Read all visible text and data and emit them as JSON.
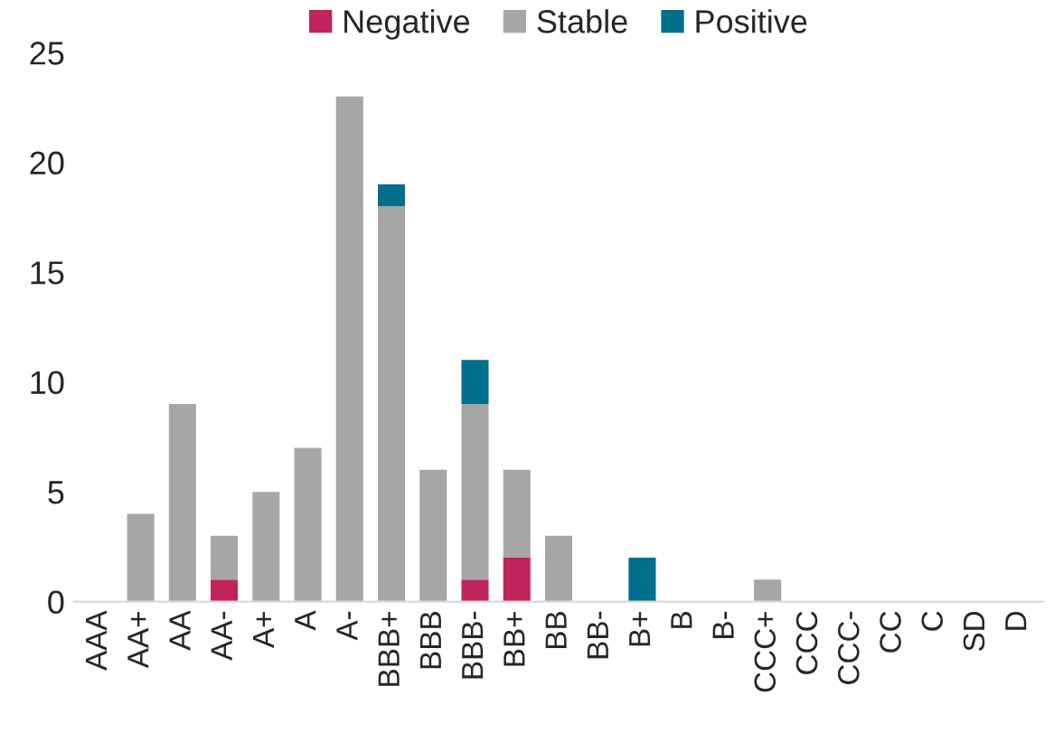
{
  "chart_data": {
    "type": "bar",
    "stacked": true,
    "categories": [
      "AAA",
      "AA+",
      "AA",
      "AA-",
      "A+",
      "A",
      "A-",
      "BBB+",
      "BBB",
      "BBB-",
      "BB+",
      "BB",
      "BB-",
      "B+",
      "B",
      "B-",
      "CCC+",
      "CCC",
      "CCC-",
      "CC",
      "C",
      "SD",
      "D"
    ],
    "series": [
      {
        "name": "Negative",
        "color": "#c0245c",
        "values": [
          0,
          0,
          0,
          1,
          0,
          0,
          0,
          0,
          0,
          1,
          2,
          0,
          0,
          0,
          0,
          0,
          0,
          0,
          0,
          0,
          0,
          0,
          0
        ]
      },
      {
        "name": "Stable",
        "color": "#a6a6a6",
        "values": [
          0,
          4,
          9,
          2,
          5,
          7,
          23,
          18,
          6,
          8,
          4,
          3,
          0,
          0,
          0,
          0,
          1,
          0,
          0,
          0,
          0,
          0,
          0
        ]
      },
      {
        "name": "Positive",
        "color": "#006f8a",
        "values": [
          0,
          0,
          0,
          0,
          0,
          0,
          0,
          1,
          0,
          2,
          0,
          0,
          0,
          2,
          0,
          0,
          0,
          0,
          0,
          0,
          0,
          0,
          0
        ]
      }
    ],
    "ylim": [
      0,
      25
    ],
    "yticks": [
      0,
      5,
      10,
      15,
      20,
      25
    ],
    "grid": false,
    "legend": "top"
  }
}
